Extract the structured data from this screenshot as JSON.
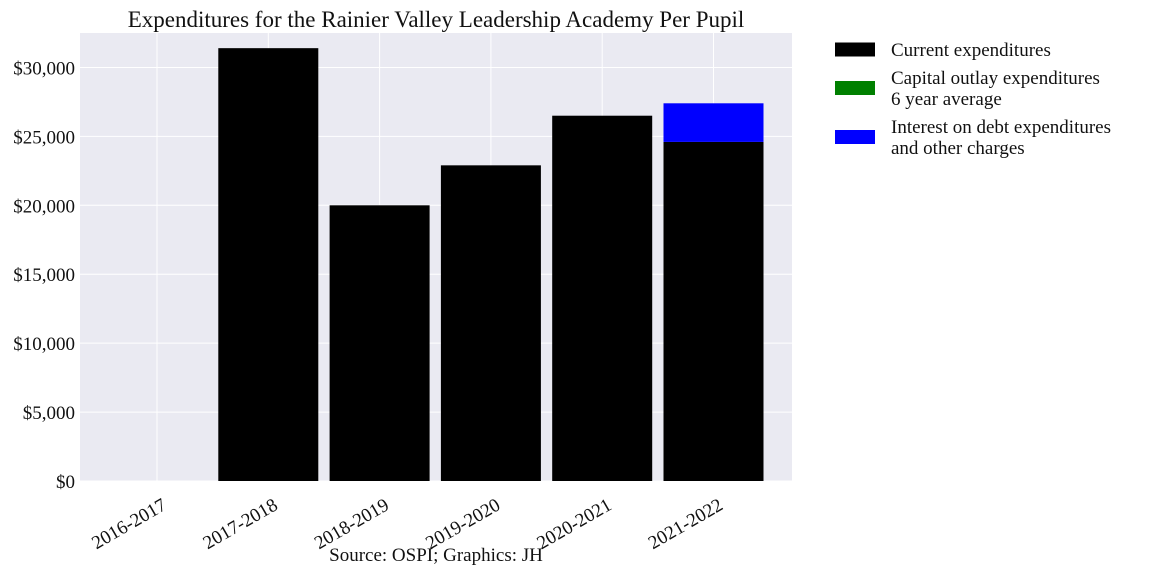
{
  "chart_data": {
    "type": "bar",
    "stacked": true,
    "title": "Expenditures for the Rainier Valley Leadership Academy Per Pupil",
    "source": "Source: OSPI; Graphics: JH",
    "xlabel": "",
    "ylabel": "",
    "categories": [
      "2016-2017",
      "2017-2018",
      "2018-2019",
      "2019-2020",
      "2020-2021",
      "2021-2022"
    ],
    "ylim": [
      0,
      32500
    ],
    "yticks": [
      0,
      5000,
      10000,
      15000,
      20000,
      25000,
      30000
    ],
    "ytick_labels": [
      "$0",
      "$5,000",
      "$10,000",
      "$15,000",
      "$20,000",
      "$25,000",
      "$30,000"
    ],
    "grid": true,
    "background": "#EAEAF2",
    "legend_position": "outside-top-right",
    "series": [
      {
        "name": "Current expenditures",
        "color": "#000000",
        "values": [
          0,
          31400,
          20000,
          22900,
          26500,
          24600
        ]
      },
      {
        "name": "Capital outlay expenditures 6 year average",
        "color": "#008000",
        "values": [
          0,
          0,
          0,
          0,
          0,
          0
        ]
      },
      {
        "name": "Interest on debt expenditures and other charges",
        "color": "#0000FF",
        "values": [
          0,
          0,
          0,
          0,
          0,
          2800
        ]
      }
    ],
    "legend": [
      {
        "lines": [
          "Current expenditures"
        ],
        "color": "#000000"
      },
      {
        "lines": [
          "Capital outlay expenditures",
          "6 year average"
        ],
        "color": "#008000"
      },
      {
        "lines": [
          "Interest on debt expenditures",
          "and other charges"
        ],
        "color": "#0000FF"
      }
    ]
  }
}
